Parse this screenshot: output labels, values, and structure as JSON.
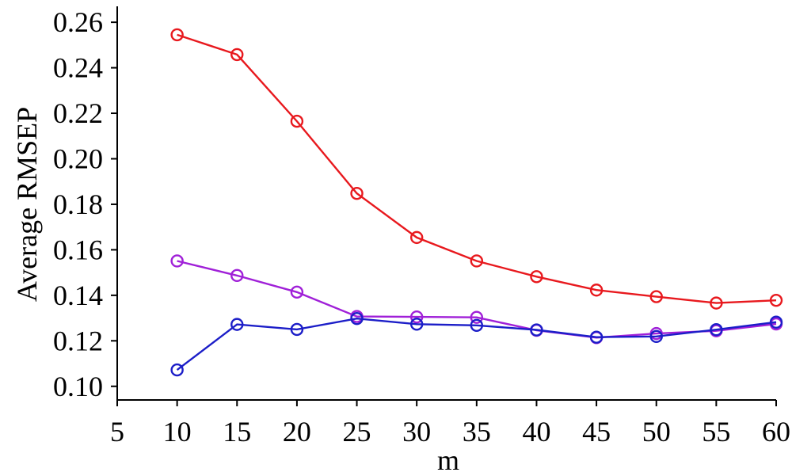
{
  "chart_data": {
    "type": "line",
    "title": "",
    "xlabel": "m",
    "ylabel": "Average RMSEP",
    "xlim": [
      5,
      60
    ],
    "ylim": [
      0.094,
      0.267
    ],
    "x_ticks": [
      "5",
      "10",
      "15",
      "20",
      "25",
      "30",
      "35",
      "40",
      "45",
      "50",
      "55",
      "60"
    ],
    "y_ticks": [
      "0.10",
      "0.12",
      "0.14",
      "0.16",
      "0.18",
      "0.20",
      "0.22",
      "0.24",
      "0.26"
    ],
    "grid": false,
    "x": [
      10,
      15,
      20,
      25,
      30,
      35,
      40,
      45,
      50,
      55,
      60
    ],
    "series": [
      {
        "color": "#e8191e",
        "marker": "circle-open",
        "values": [
          0.2545,
          0.2458,
          0.2165,
          0.1848,
          0.1654,
          0.1551,
          0.1482,
          0.1423,
          0.1394,
          0.1366,
          0.1378
        ]
      },
      {
        "color": "#a020d8",
        "marker": "circle-open",
        "values": [
          0.1551,
          0.1487,
          0.1414,
          0.1307,
          0.1305,
          0.1303,
          0.1246,
          0.1214,
          0.1232,
          0.1244,
          0.1274
        ]
      },
      {
        "color": "#1c1ec8",
        "marker": "circle-open",
        "values": [
          0.1072,
          0.1272,
          0.125,
          0.1298,
          0.1273,
          0.1268,
          0.1248,
          0.1216,
          0.1219,
          0.1249,
          0.1282
        ]
      }
    ]
  }
}
